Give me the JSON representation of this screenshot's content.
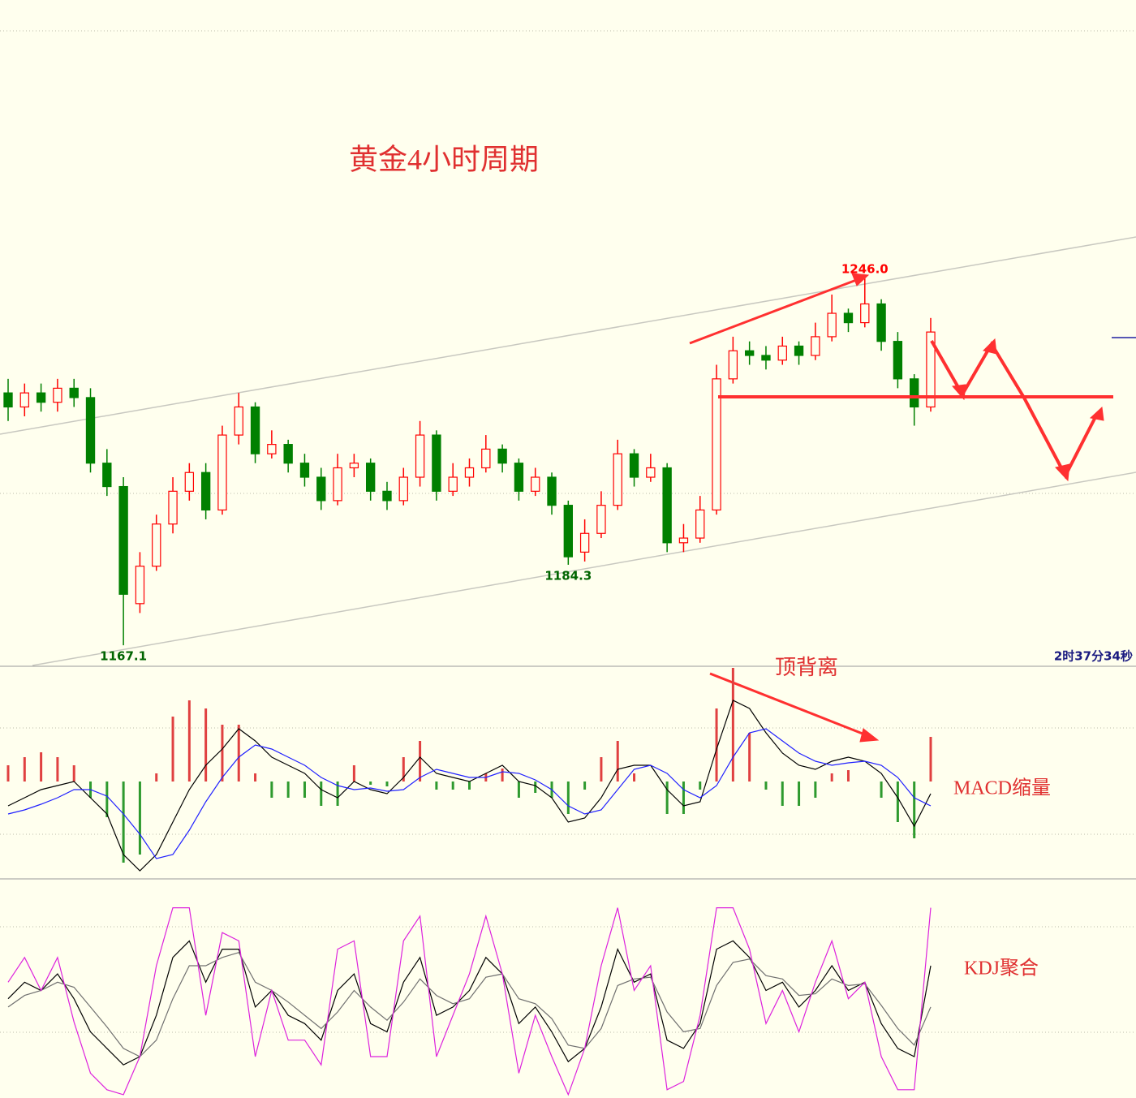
{
  "chart_data": [
    {
      "type": "candlestick",
      "title": "黄金4小时周期",
      "timer": "2时37分34秒",
      "open": [
        1221,
        1218,
        1221,
        1219,
        1222,
        1220,
        1206,
        1201,
        1176,
        1184,
        1193,
        1200,
        1204,
        1196,
        1212,
        1218,
        1208,
        1210,
        1206,
        1203,
        1198,
        1205,
        1206,
        1200,
        1198,
        1203,
        1212,
        1200,
        1203,
        1205,
        1209,
        1206,
        1200,
        1203,
        1197,
        1187,
        1191,
        1197,
        1208,
        1203,
        1205,
        1189,
        1190,
        1196,
        1224,
        1230,
        1229,
        1228,
        1231,
        1229,
        1233,
        1238,
        1236,
        1240,
        1232,
        1224,
        1218
      ],
      "high": [
        1224,
        1223,
        1223,
        1224,
        1224,
        1222,
        1209,
        1203,
        1187,
        1195,
        1203,
        1206,
        1206,
        1214,
        1221,
        1219,
        1213,
        1211,
        1208,
        1205,
        1208,
        1208,
        1207,
        1202,
        1205,
        1215,
        1213,
        1206,
        1207,
        1212,
        1210,
        1207,
        1205,
        1204,
        1198,
        1194,
        1200,
        1211,
        1209,
        1208,
        1206,
        1193,
        1199,
        1227,
        1233,
        1232,
        1231,
        1233,
        1232,
        1236,
        1242,
        1239,
        1246.0,
        1241,
        1234,
        1225,
        1237
      ],
      "low": [
        1215,
        1216,
        1217,
        1217,
        1218,
        1204,
        1199,
        1167.1,
        1174,
        1183,
        1191,
        1198,
        1194,
        1195,
        1210,
        1206,
        1207,
        1204,
        1201,
        1196,
        1197,
        1203,
        1198,
        1196,
        1197,
        1201,
        1198,
        1199,
        1201,
        1204,
        1204,
        1198,
        1199,
        1195,
        1184.3,
        1185,
        1190,
        1196,
        1201,
        1202,
        1187,
        1187,
        1189,
        1195,
        1223,
        1227,
        1226,
        1227,
        1227,
        1228,
        1232,
        1234,
        1235,
        1230,
        1222,
        1214,
        1217
      ],
      "close": [
        1218,
        1221,
        1219,
        1222,
        1220,
        1206,
        1201,
        1178,
        1184,
        1193,
        1200,
        1204,
        1196,
        1212,
        1218,
        1208,
        1210,
        1206,
        1203,
        1198,
        1205,
        1206,
        1200,
        1198,
        1203,
        1212,
        1200,
        1203,
        1205,
        1209,
        1206,
        1200,
        1203,
        1197,
        1186,
        1191,
        1197,
        1208,
        1203,
        1205,
        1189,
        1190,
        1196,
        1224,
        1230,
        1229,
        1228,
        1231,
        1229,
        1233,
        1238,
        1236,
        1240,
        1232,
        1224,
        1218,
        1234
      ],
      "up_color": "#ff0000",
      "down_color": "#008000",
      "ylim": [
        1162.8,
        1304.9
      ],
      "annotations": [
        {
          "label": "1246.0",
          "value": 1246.0,
          "color": "#ff0000"
        },
        {
          "label": "1184.3",
          "value": 1184.3,
          "color": "#006400"
        },
        {
          "label": "1167.1",
          "value": 1167.1,
          "color": "#006400"
        }
      ]
    },
    {
      "type": "macd",
      "annotations": [
        {
          "label": "顶背离"
        },
        {
          "label": "MACD缩量"
        }
      ],
      "ylim": [
        -12,
        14.1
      ],
      "histogram": {
        "up_color": "#e04040",
        "down_color": "#2e9a2e",
        "values": [
          2,
          3,
          3.6,
          3,
          2,
          -2,
          -4.4,
          -10,
          -9,
          1,
          8,
          10,
          9,
          7,
          7,
          1,
          -2,
          -2,
          -2,
          -3,
          -3,
          2,
          -0.4,
          -0.6,
          3,
          5,
          -1,
          -1,
          -1,
          1,
          1.6,
          -2,
          -1.4,
          -2,
          -4,
          -1,
          3,
          5,
          1,
          0,
          -4,
          -4,
          -1,
          9,
          14,
          6,
          -1,
          -3,
          -3,
          -2,
          1,
          1.4,
          0,
          -2,
          -5,
          -7,
          5.5
        ]
      },
      "series": [
        {
          "color": "#000000",
          "values": [
            -3,
            -2,
            -1,
            -0.5,
            0,
            -2,
            -4,
            -9,
            -11,
            -9,
            -5,
            -1,
            2,
            4,
            6.5,
            5,
            3,
            2,
            1,
            -1,
            -2,
            0,
            -1,
            -1.5,
            0.5,
            3,
            1,
            0.5,
            0,
            1,
            2,
            0,
            -0.5,
            -2,
            -5,
            -4.5,
            -2,
            1.5,
            2,
            2,
            -1,
            -3,
            -2.5,
            4,
            10,
            9,
            6,
            3.5,
            2,
            1.5,
            2.5,
            3,
            2.5,
            1,
            -2,
            -5.5,
            -1.5
          ]
        },
        {
          "color": "#2020ff",
          "values": [
            -4,
            -3.5,
            -2.8,
            -2,
            -1,
            -1,
            -1.8,
            -4,
            -6.5,
            -9.5,
            -9,
            -6,
            -2.5,
            0.5,
            3,
            4.5,
            4,
            3,
            2,
            0.5,
            -0.5,
            -1,
            -0.8,
            -1.2,
            -1,
            0.5,
            1.5,
            1,
            0.5,
            0.5,
            1.2,
            1,
            0.2,
            -1,
            -3,
            -4,
            -3.5,
            -1,
            1.5,
            2,
            1,
            -1,
            -2,
            -0.5,
            3,
            6,
            6.5,
            5,
            3.5,
            2.5,
            2,
            2.3,
            2.5,
            2,
            0.5,
            -2,
            -3
          ]
        }
      ]
    },
    {
      "type": "line",
      "annotations": [
        {
          "label": "KDJ聚合"
        }
      ],
      "ylim": [
        -10,
        121.5
      ],
      "series": [
        {
          "color": "#000000",
          "values": [
            50,
            60,
            55,
            65,
            50,
            30,
            20,
            10,
            15,
            40,
            75,
            85,
            60,
            80,
            80,
            45,
            55,
            40,
            35,
            25,
            55,
            65,
            35,
            30,
            60,
            75,
            40,
            45,
            55,
            75,
            65,
            35,
            45,
            30,
            12,
            20,
            45,
            80,
            60,
            65,
            25,
            20,
            35,
            80,
            85,
            75,
            55,
            60,
            45,
            55,
            70,
            55,
            60,
            35,
            20,
            15,
            70
          ]
        },
        {
          "color": "#707070",
          "values": [
            45,
            52,
            55,
            60,
            57,
            45,
            33,
            20,
            15,
            25,
            50,
            70,
            70,
            75,
            78,
            60,
            55,
            48,
            40,
            32,
            42,
            55,
            45,
            37,
            48,
            62,
            52,
            47,
            50,
            63,
            65,
            50,
            47,
            38,
            22,
            20,
            32,
            58,
            62,
            63,
            42,
            30,
            32,
            58,
            72,
            74,
            64,
            62,
            52,
            53,
            62,
            58,
            59,
            46,
            32,
            22,
            45
          ]
        },
        {
          "color": "#dd22dd",
          "values": [
            60,
            75,
            55,
            75,
            36,
            5,
            -5,
            -8,
            15,
            70,
            105,
            105,
            40,
            90,
            85,
            15,
            55,
            25,
            25,
            10,
            80,
            85,
            15,
            15,
            85,
            100,
            15,
            40,
            65,
            100,
            65,
            5,
            40,
            15,
            -8,
            20,
            70,
            105,
            55,
            70,
            -5,
            0,
            40,
            105,
            105,
            80,
            35,
            55,
            30,
            60,
            85,
            50,
            60,
            15,
            -5,
            -5,
            105
          ]
        }
      ]
    }
  ]
}
